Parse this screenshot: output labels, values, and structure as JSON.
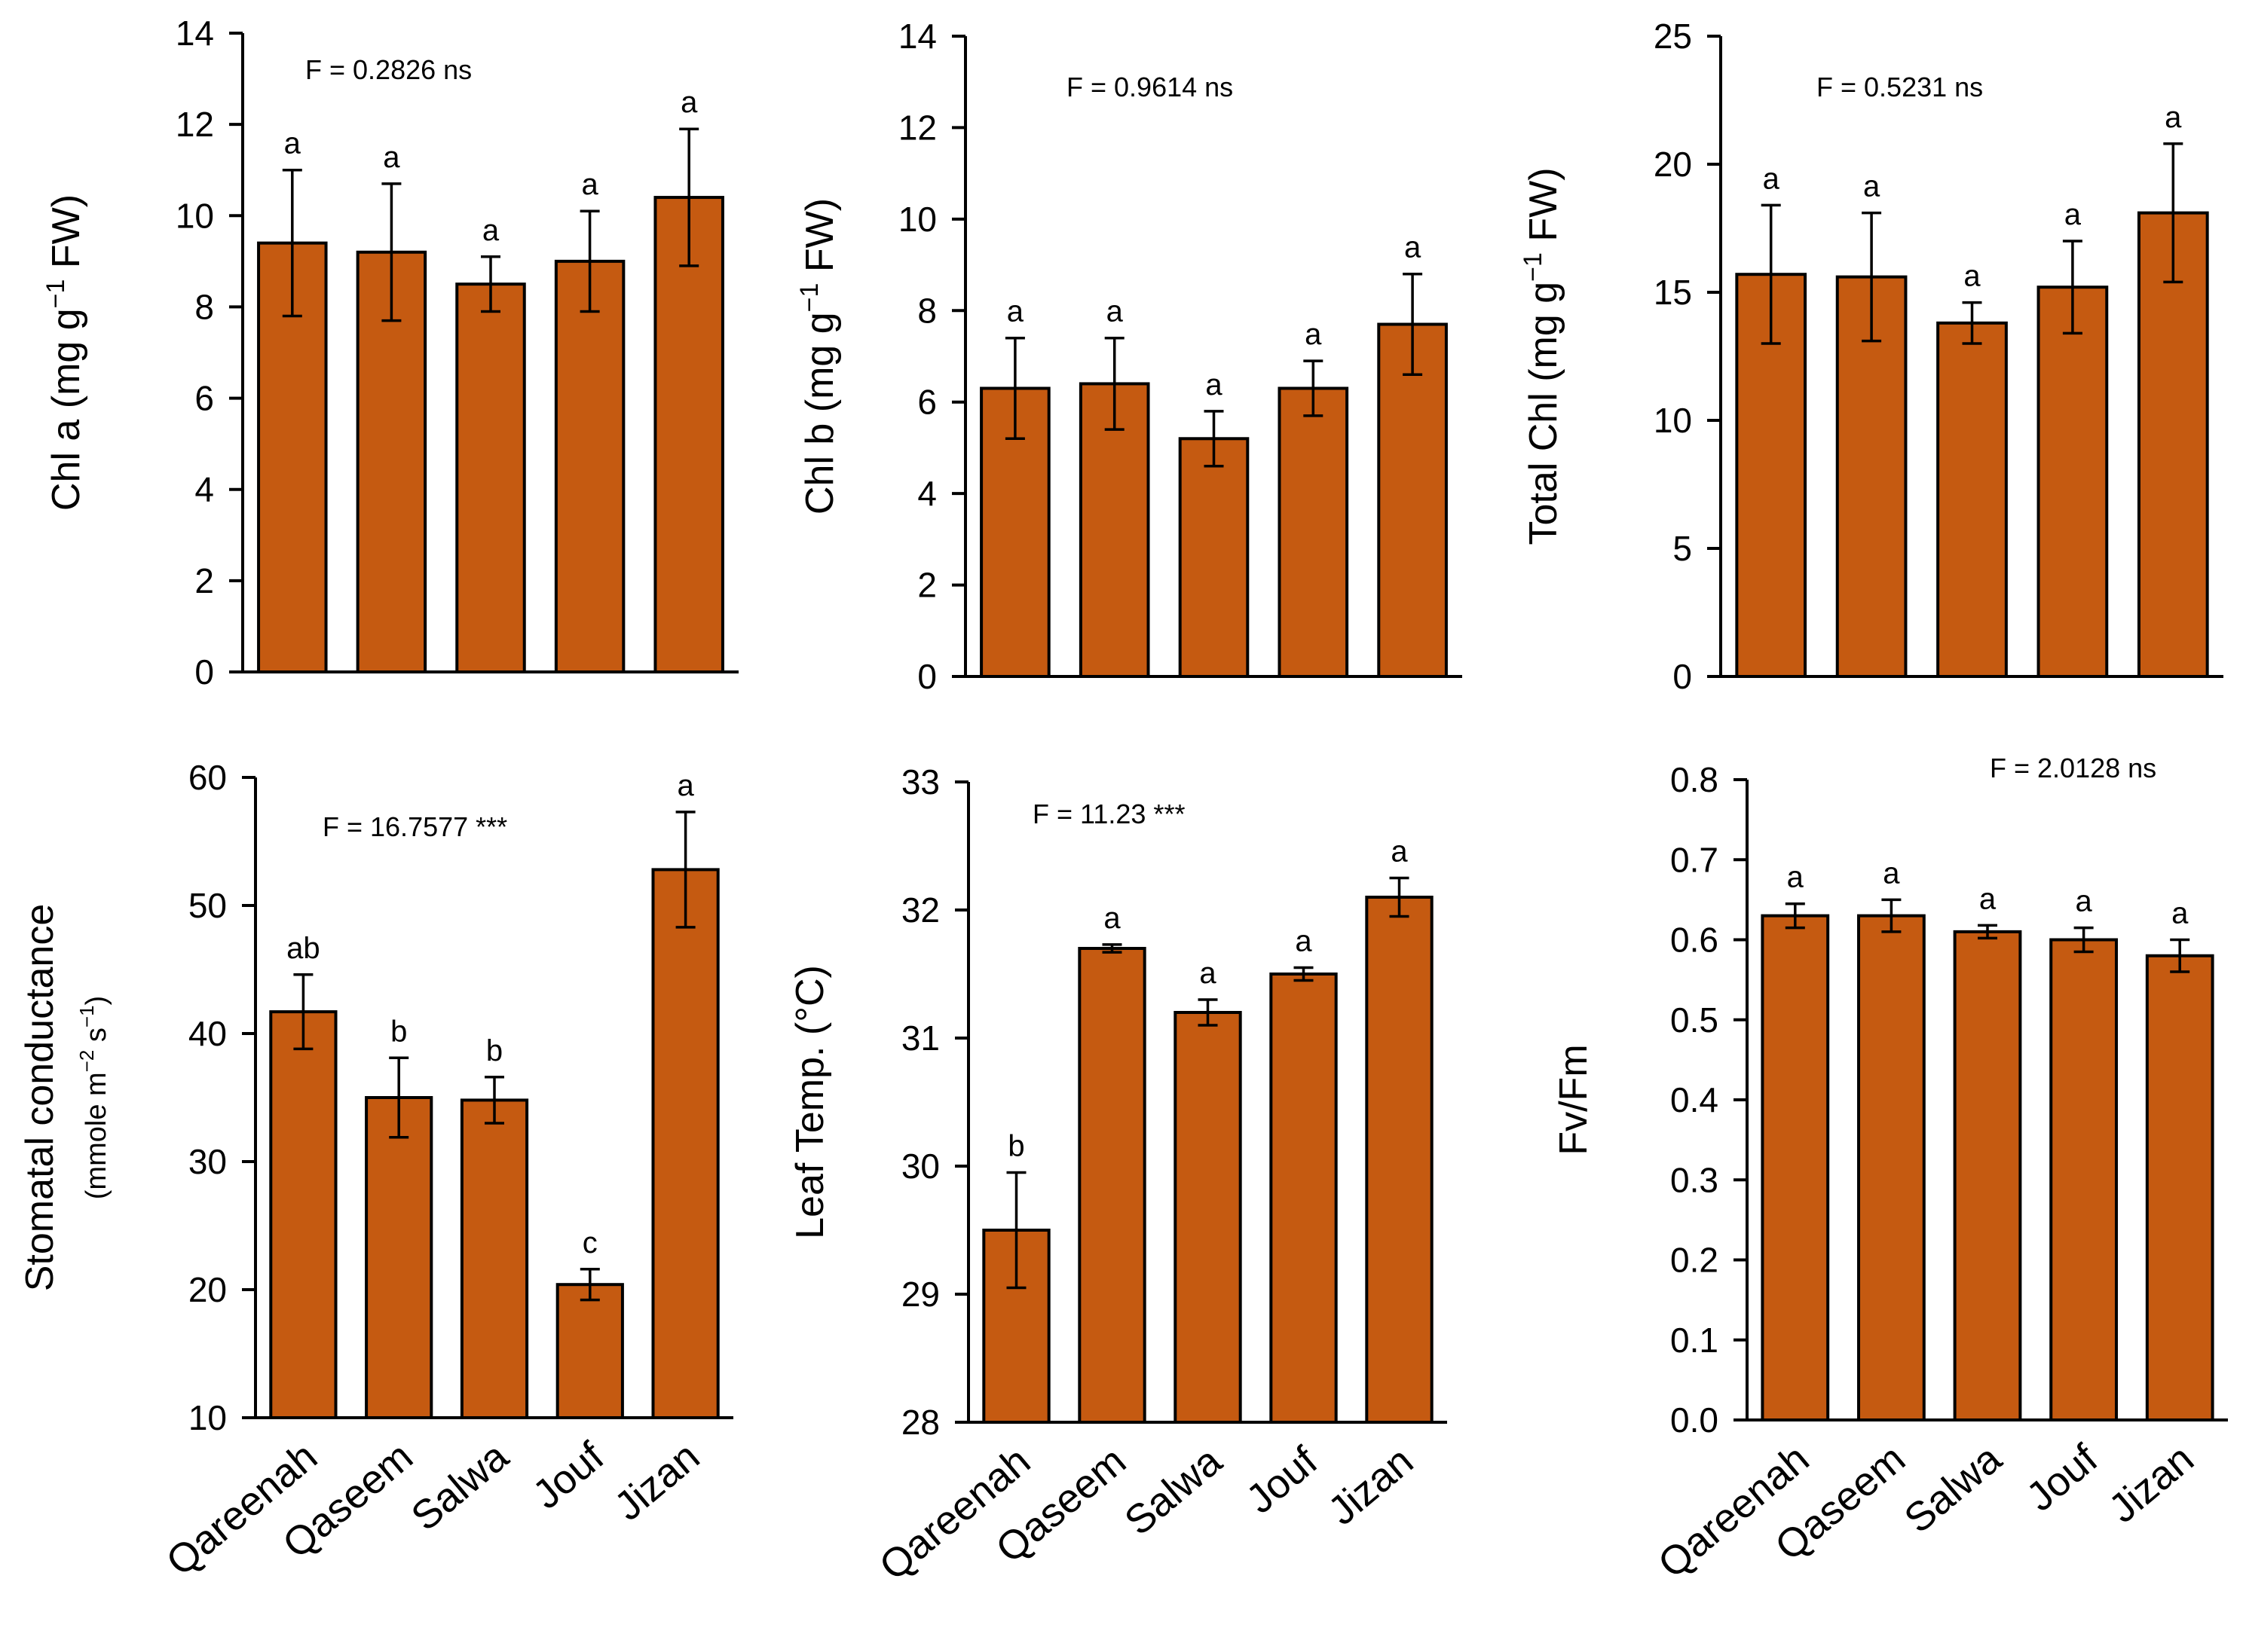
{
  "bar_color": "#C55A11",
  "bar_edge_color": "#000000",
  "chart_data": [
    {
      "id": "chl-a",
      "type": "bar",
      "categories": [
        "Qareenah",
        "Qaseem",
        "Salwa",
        "Jouf",
        "Jizan"
      ],
      "values": [
        9.4,
        9.2,
        8.5,
        9.0,
        10.4
      ],
      "errors": [
        1.6,
        1.5,
        0.6,
        1.1,
        1.5
      ],
      "letters": [
        "a",
        "a",
        "a",
        "a",
        "a"
      ],
      "stat": "F = 0.2826 ns",
      "ylabel": "Chl a (mg g",
      "ylabel_sup": "−1",
      "ylabel_tail": " FW)",
      "ylabel_sub": "",
      "ylim": [
        0,
        14
      ],
      "yticks": [
        "0",
        "2",
        "4",
        "6",
        "8",
        "10",
        "12",
        "14"
      ]
    },
    {
      "id": "chl-b",
      "type": "bar",
      "categories": [
        "Qareenah",
        "Qaseem",
        "Salwa",
        "Jouf",
        "Jizan"
      ],
      "values": [
        6.3,
        6.4,
        5.2,
        6.3,
        7.7
      ],
      "errors": [
        1.1,
        1.0,
        0.6,
        0.6,
        1.1
      ],
      "letters": [
        "a",
        "a",
        "a",
        "a",
        "a"
      ],
      "stat": "F = 0.9614 ns",
      "ylabel": "Chl b (mg g",
      "ylabel_sup": "−1",
      "ylabel_tail": " FW)",
      "ylabel_sub": "",
      "ylim": [
        0,
        14
      ],
      "yticks": [
        "0",
        "2",
        "4",
        "6",
        "8",
        "10",
        "12",
        "14"
      ]
    },
    {
      "id": "total-chl",
      "type": "bar",
      "categories": [
        "Qareenah",
        "Qaseem",
        "Salwa",
        "Jouf",
        "Jizan"
      ],
      "values": [
        15.7,
        15.6,
        13.8,
        15.2,
        18.1
      ],
      "errors": [
        2.7,
        2.5,
        0.8,
        1.8,
        2.7
      ],
      "letters": [
        "a",
        "a",
        "a",
        "a",
        "a"
      ],
      "stat": "F = 0.5231 ns",
      "ylabel": "Total Chl (mg g",
      "ylabel_sup": "−1",
      "ylabel_tail": " FW)",
      "ylabel_sub": "",
      "ylim": [
        0,
        25
      ],
      "yticks": [
        "0",
        "5",
        "10",
        "15",
        "20",
        "25"
      ]
    },
    {
      "id": "stomatal-conductance",
      "type": "bar",
      "categories": [
        "Qareenah",
        "Qaseem",
        "Salwa",
        "Jouf",
        "Jizan"
      ],
      "values": [
        41.7,
        35.0,
        34.8,
        20.4,
        52.8
      ],
      "errors": [
        2.9,
        3.1,
        1.8,
        1.2,
        4.5
      ],
      "letters": [
        "ab",
        "b",
        "b",
        "c",
        "a"
      ],
      "stat": "F = 16.7577 ***",
      "ylabel": "Stomatal conductance",
      "ylabel_sup": "",
      "ylabel_tail": "",
      "ylabel_sub": "(mmole m",
      "ylabel_sub_sup1": "−2",
      "ylabel_sub_mid": " s",
      "ylabel_sub_sup2": "−1",
      "ylabel_sub_tail": ")",
      "ylim": [
        10,
        60
      ],
      "yticks": [
        "10",
        "20",
        "30",
        "40",
        "50",
        "60"
      ]
    },
    {
      "id": "leaf-temp",
      "type": "bar",
      "categories": [
        "Qareenah",
        "Qaseem",
        "Salwa",
        "Jouf",
        "Jizan"
      ],
      "values": [
        29.5,
        31.7,
        31.2,
        31.5,
        32.1
      ],
      "errors": [
        0.45,
        0.03,
        0.1,
        0.05,
        0.15
      ],
      "letters": [
        "b",
        "a",
        "a",
        "a",
        "a"
      ],
      "stat": "F = 11.23 ***",
      "ylabel": "Leaf Temp. (°C)",
      "ylabel_sup": "",
      "ylabel_tail": "",
      "ylabel_sub": "",
      "ylim": [
        28,
        33
      ],
      "yticks": [
        "28",
        "29",
        "30",
        "31",
        "32",
        "33"
      ]
    },
    {
      "id": "fv-fm",
      "type": "bar",
      "categories": [
        "Qareenah",
        "Qaseem",
        "Salwa",
        "Jouf",
        "Jizan"
      ],
      "values": [
        0.63,
        0.63,
        0.61,
        0.6,
        0.58
      ],
      "errors": [
        0.015,
        0.02,
        0.008,
        0.015,
        0.02
      ],
      "letters": [
        "a",
        "a",
        "a",
        "a",
        "a"
      ],
      "stat": "F = 2.0128 ns",
      "ylabel": "Fv/Fm",
      "ylabel_sup": "",
      "ylabel_tail": "",
      "ylabel_sub": "",
      "ylim": [
        0.0,
        0.8
      ],
      "yticks": [
        "0.0",
        "0.1",
        "0.2",
        "0.3",
        "0.4",
        "0.5",
        "0.6",
        "0.7",
        "0.8"
      ]
    }
  ]
}
